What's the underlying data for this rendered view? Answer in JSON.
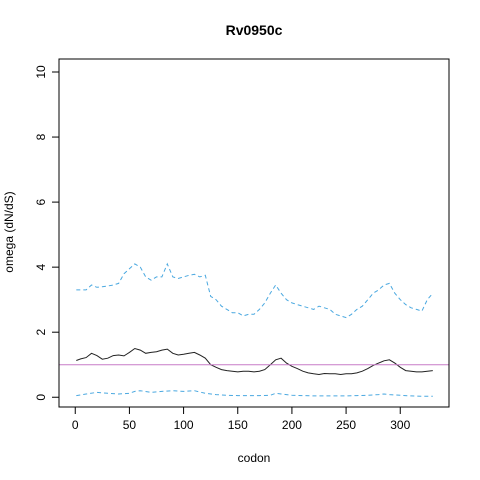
{
  "chart_data": {
    "type": "line",
    "title": "Rv0950c",
    "xlabel": "codon",
    "ylabel": "omega (dN/dS)",
    "xlim": [
      -15,
      345
    ],
    "ylim": [
      -0.3,
      10.4
    ],
    "x_ticks": [
      0,
      50,
      100,
      150,
      200,
      250,
      300
    ],
    "y_ticks": [
      0,
      2,
      4,
      6,
      8,
      10
    ],
    "grid": false,
    "reference_line": {
      "y": 1,
      "color": "#c77cc7"
    },
    "series": [
      {
        "color": "#222222",
        "dash": "solid",
        "x": [
          1,
          5,
          10,
          15,
          20,
          25,
          30,
          35,
          40,
          45,
          50,
          55,
          60,
          65,
          70,
          75,
          80,
          85,
          90,
          95,
          100,
          105,
          110,
          115,
          120,
          125,
          130,
          135,
          140,
          145,
          150,
          155,
          160,
          165,
          170,
          175,
          180,
          185,
          190,
          195,
          200,
          205,
          210,
          215,
          220,
          225,
          230,
          235,
          240,
          245,
          250,
          255,
          260,
          265,
          270,
          275,
          280,
          285,
          290,
          295,
          300,
          305,
          310,
          315,
          320,
          325,
          330
        ],
        "y": [
          1.13,
          1.18,
          1.22,
          1.35,
          1.28,
          1.17,
          1.2,
          1.28,
          1.3,
          1.27,
          1.38,
          1.5,
          1.45,
          1.35,
          1.38,
          1.4,
          1.45,
          1.48,
          1.35,
          1.3,
          1.32,
          1.35,
          1.38,
          1.3,
          1.2,
          1.0,
          0.92,
          0.85,
          0.82,
          0.8,
          0.78,
          0.8,
          0.8,
          0.78,
          0.8,
          0.85,
          1.0,
          1.15,
          1.2,
          1.05,
          0.95,
          0.88,
          0.8,
          0.75,
          0.72,
          0.7,
          0.73,
          0.72,
          0.72,
          0.7,
          0.72,
          0.72,
          0.75,
          0.8,
          0.88,
          0.98,
          1.05,
          1.12,
          1.15,
          1.05,
          0.92,
          0.82,
          0.8,
          0.78,
          0.78,
          0.8,
          0.82
        ]
      },
      {
        "color": "#4aa8e0",
        "dash": "dashed",
        "x": [
          1,
          5,
          10,
          15,
          20,
          25,
          30,
          35,
          40,
          45,
          50,
          55,
          60,
          65,
          70,
          75,
          80,
          85,
          90,
          95,
          100,
          105,
          110,
          115,
          120,
          125,
          130,
          135,
          140,
          145,
          150,
          155,
          160,
          165,
          170,
          175,
          180,
          185,
          190,
          195,
          200,
          205,
          210,
          215,
          220,
          225,
          230,
          235,
          240,
          245,
          250,
          255,
          260,
          265,
          270,
          275,
          280,
          285,
          290,
          295,
          300,
          305,
          310,
          315,
          320,
          325,
          330
        ],
        "y": [
          3.3,
          3.3,
          3.3,
          3.45,
          3.38,
          3.4,
          3.42,
          3.45,
          3.5,
          3.8,
          3.95,
          4.1,
          4.0,
          3.7,
          3.6,
          3.7,
          3.7,
          4.1,
          3.7,
          3.65,
          3.7,
          3.75,
          3.78,
          3.7,
          3.75,
          3.1,
          3.0,
          2.8,
          2.7,
          2.6,
          2.6,
          2.5,
          2.55,
          2.55,
          2.7,
          2.9,
          3.2,
          3.45,
          3.2,
          3.0,
          2.9,
          2.85,
          2.8,
          2.75,
          2.7,
          2.8,
          2.75,
          2.7,
          2.55,
          2.5,
          2.45,
          2.55,
          2.7,
          2.8,
          3.0,
          3.2,
          3.3,
          3.45,
          3.5,
          3.2,
          3.0,
          2.85,
          2.75,
          2.7,
          2.65,
          3.0,
          3.2
        ]
      },
      {
        "color": "#4aa8e0",
        "dash": "dashed",
        "x": [
          1,
          10,
          20,
          30,
          40,
          50,
          55,
          60,
          70,
          80,
          90,
          100,
          110,
          120,
          130,
          140,
          150,
          160,
          170,
          180,
          185,
          190,
          200,
          210,
          220,
          230,
          240,
          250,
          260,
          270,
          280,
          285,
          290,
          300,
          310,
          320,
          330
        ],
        "y": [
          0.05,
          0.1,
          0.15,
          0.12,
          0.1,
          0.12,
          0.18,
          0.2,
          0.15,
          0.18,
          0.2,
          0.18,
          0.2,
          0.12,
          0.08,
          0.06,
          0.05,
          0.05,
          0.05,
          0.06,
          0.12,
          0.1,
          0.06,
          0.05,
          0.04,
          0.04,
          0.04,
          0.04,
          0.05,
          0.06,
          0.08,
          0.1,
          0.08,
          0.06,
          0.04,
          0.03,
          0.03
        ]
      }
    ]
  }
}
